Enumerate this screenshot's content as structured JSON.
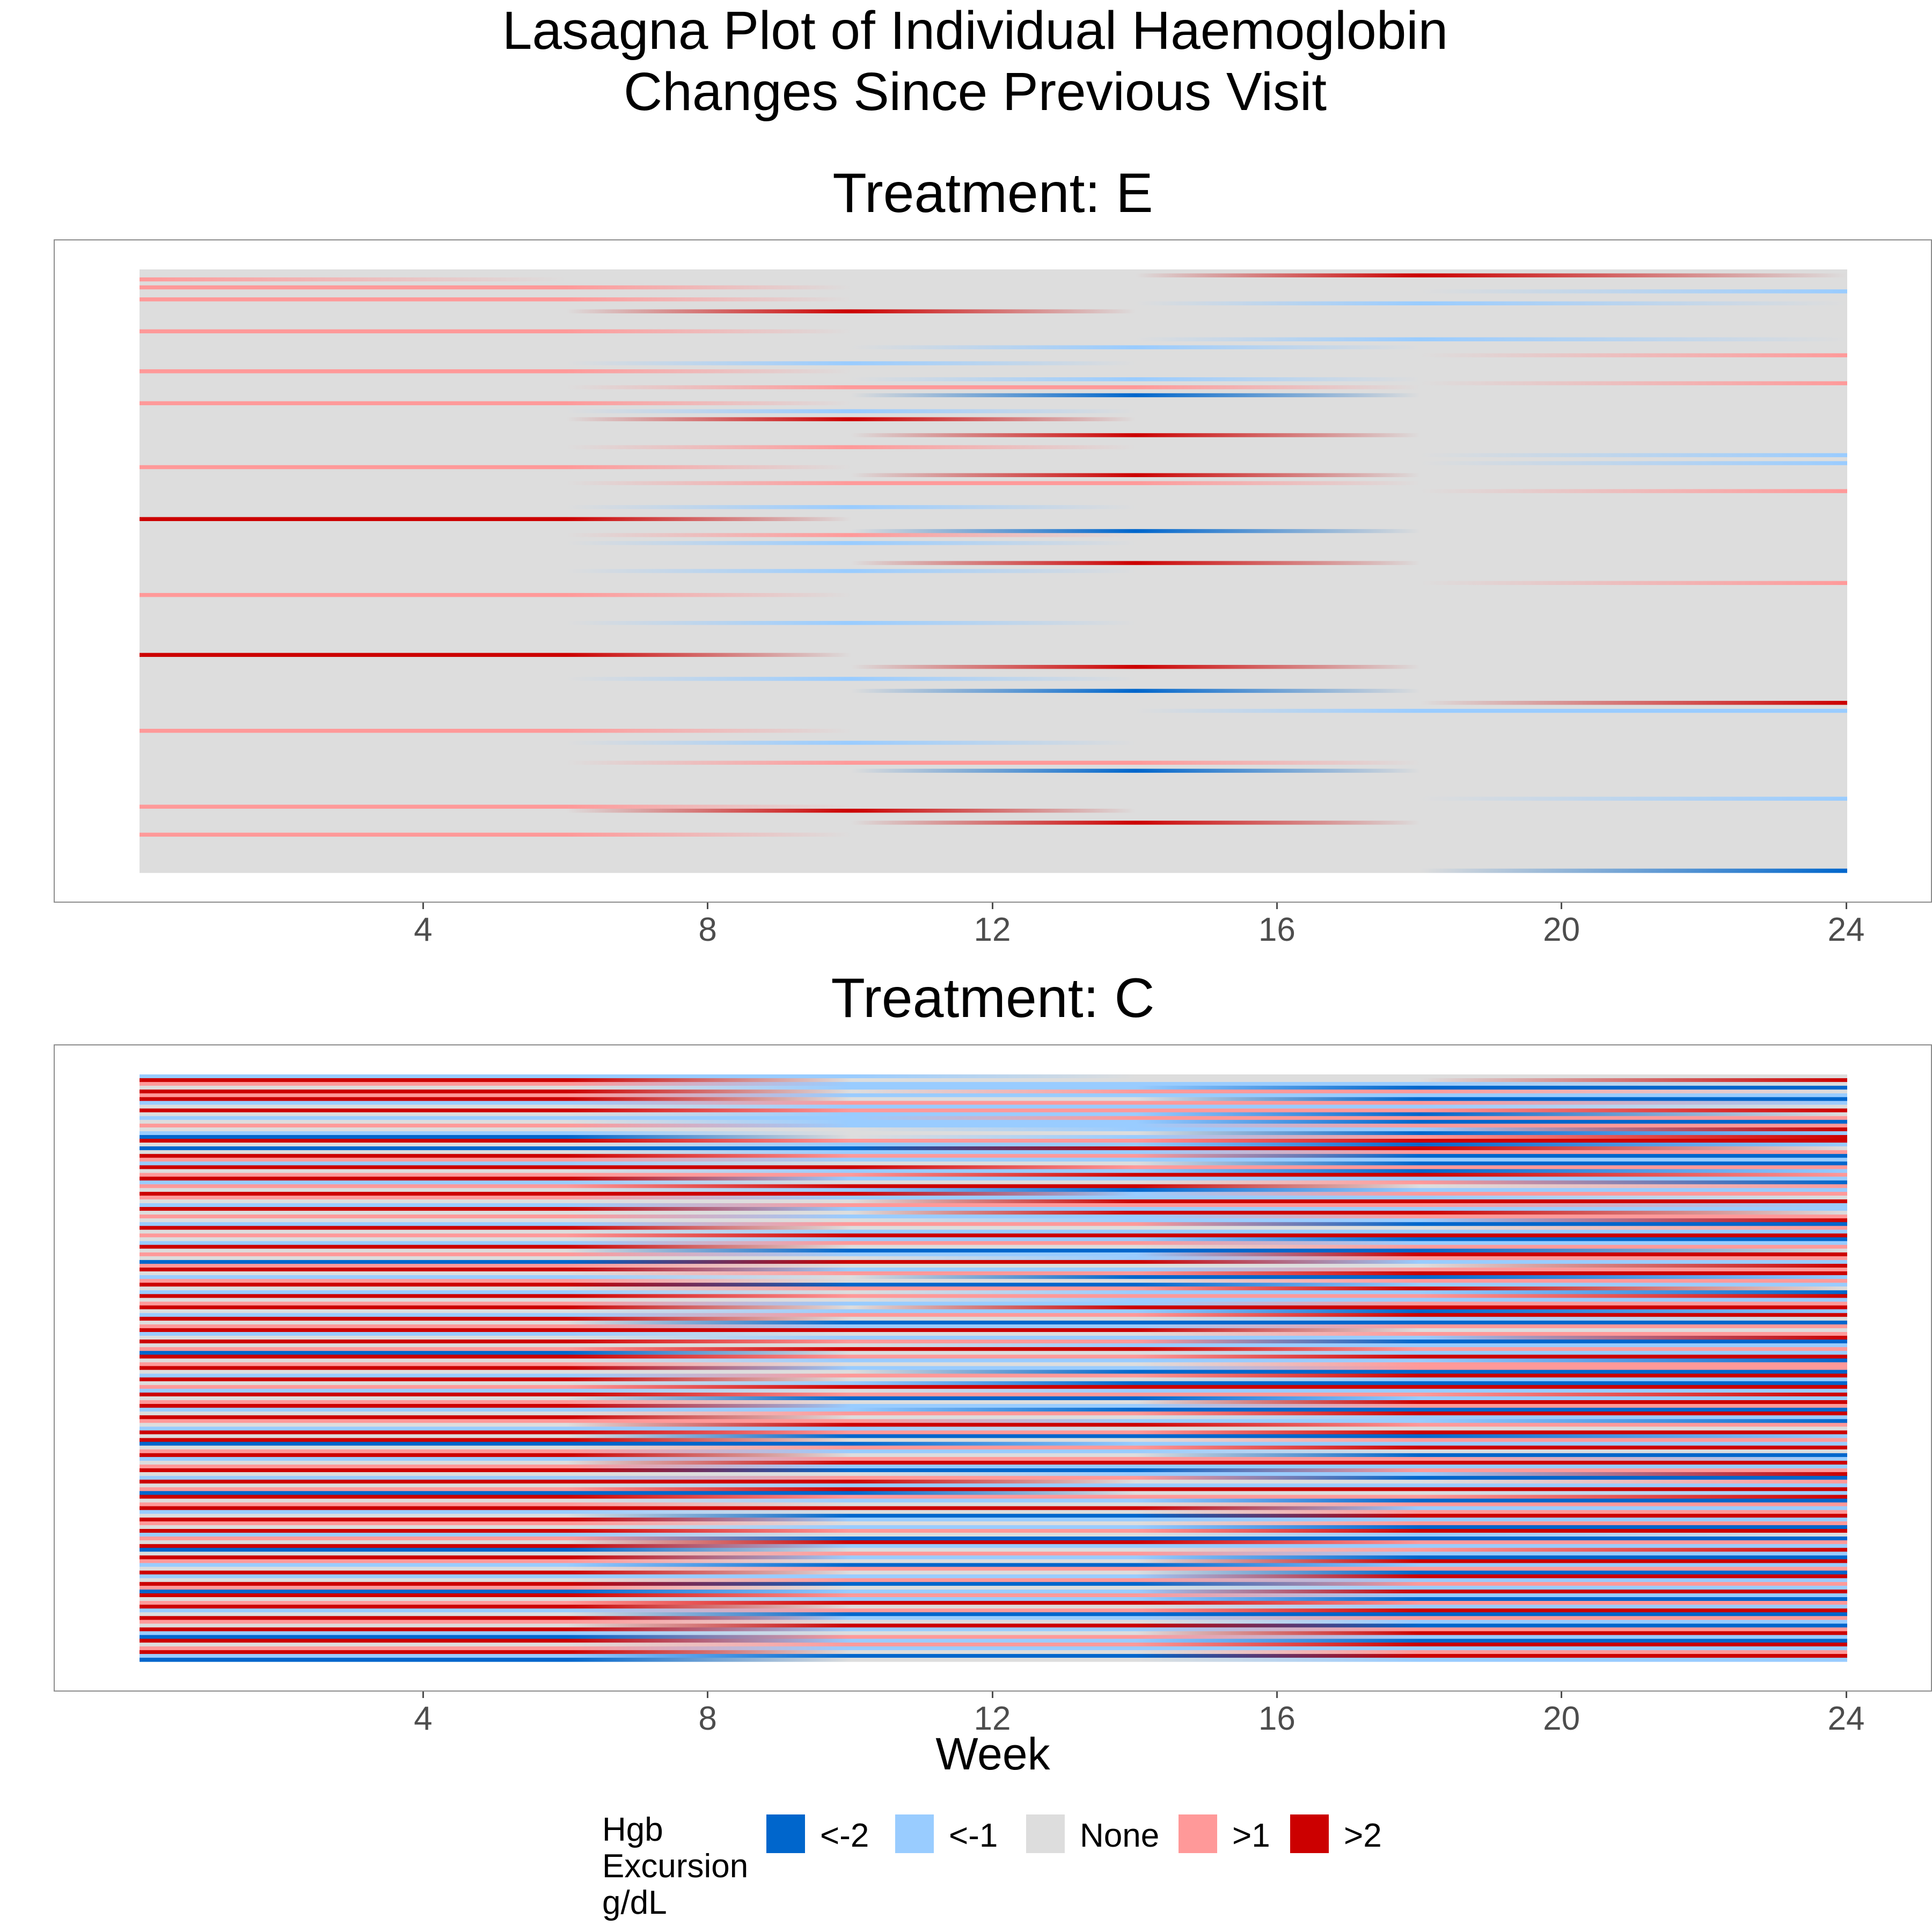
{
  "title_lines": [
    "Lasagna Plot of Individual Haemoglobin",
    "Changes Since Previous Visit"
  ],
  "chart_data": {
    "type": "heatmap",
    "title": "Lasagna Plot of Individual Haemoglobin Changes Since Previous Visit",
    "xlabel": "Week",
    "ylabel": "",
    "xlim": [
      0,
      24
    ],
    "x_ticks": [
      "4",
      "8",
      "12",
      "16",
      "20",
      "24"
    ],
    "grid": false,
    "legend_position": "bottom",
    "legend": {
      "title_lines": [
        "Hgb",
        "Excursion",
        "g/dL"
      ],
      "categories": [
        {
          "label": "<-2",
          "color": "#0066CC"
        },
        {
          "label": "<-1",
          "color": "#99CCFF"
        },
        {
          "label": "None",
          "color": "#DDDDDD"
        },
        {
          "label": ">1",
          "color": "#FF9999"
        },
        {
          "label": ">2",
          "color": "#CC0000"
        }
      ]
    },
    "weeks": [
      0,
      6,
      10,
      14,
      18,
      24
    ],
    "panels": [
      {
        "title": "Treatment: E",
        "rows": [
          "NNNNNN",
          "NNNNXN",
          "PNNNNN",
          "NNNNNN",
          "PPNNNN",
          "NNNNNL",
          "NNNNNN",
          "PPNNNN",
          "NNNNLN",
          "NNNNNN",
          "NNXNNN",
          "NNNNNN",
          "NNNNNN",
          "NNNNNN",
          "NNNNNN",
          "PPNNNN",
          "NNNNNN",
          "NNNNLN",
          "NNNNNN",
          "NNNLNN",
          "NNNNNN",
          "NNNNNP",
          "NNNNNN",
          "NNLNNN",
          "NNNNNN",
          "PPNNNN",
          "NNNNNN",
          "NNNLNN",
          "NNNNNP",
          "NNPPNN",
          "NNNNNN",
          "NNNDNN",
          "NNNNNN",
          "PPNNNN",
          "NNNNNN",
          "NNLNNN",
          "NNNNNN",
          "NNXNNN",
          "NNNNNN",
          "NNNNNN",
          "NNNNNN",
          "NNNXNN",
          "NNNNNN",
          "NNNNNN",
          "NNPNNN",
          "NNNNNN",
          "NNNNNL",
          "NNNNNN",
          "NNNNNL",
          "PPNNNN",
          "NNNNNN",
          "NNNXNN",
          "NNNNNN",
          "NNPPNN",
          "NNNNNN",
          "NNNNNP",
          "NNNNNN",
          "NNNNNN",
          "NNNNNN",
          "NNLNNN",
          "NNNNNN",
          "NNNNNN",
          "XXNNNN",
          "NNNNNN",
          "NNNNNN",
          "NNNDNN",
          "NNPNNN",
          "NNNNNN",
          "NNLNNN",
          "NNNNNN",
          "NNNNNN",
          "NNNNNN",
          "NNNNNN",
          "NNNXNN",
          "NNNNNN",
          "NNLNNN",
          "NNNNNN",
          "NNNNNN",
          "NNNNNP",
          "NNNNNN",
          "NNNNNN",
          "PPNNNN",
          "NNNNNN",
          "NNNNNN",
          "NNNNNN",
          "NNNNNN",
          "NNNNNN",
          "NNNNNN",
          "NNLNNN",
          "NNNNNN",
          "NNNNNN",
          "NNNNNN",
          "NNNNNN",
          "NNNNNN",
          "NNNNNN",
          "NNNNNN",
          "XXNNNN",
          "NNNNNN",
          "NNNNNN",
          "NNNXNN",
          "NNNNNN",
          "NNNNNN",
          "NNLNNN",
          "NNNNNN",
          "NNNNNN",
          "NNNDNN",
          "NNNNNN",
          "NNNNNN",
          "NNNNNX",
          "NNNNNN",
          "NNNNLL",
          "NNNNNN",
          "NNNNNN",
          "NNNNNN",
          "NNNNNN",
          "PPNNNN",
          "NNNNNN",
          "NNNNNN",
          "NNLNNN",
          "NNNNNN",
          "NNNNNN",
          "NNNNNN",
          "NNNNNN",
          "NNPPNN",
          "NNNNNN",
          "NNNDNN",
          "NNNNNN",
          "NNNNNN",
          "NNNNNN",
          "NNNNNN",
          "NNNNNN",
          "NNNNNN",
          "NNNNNL",
          "NNNNNN",
          "PPNNNN",
          "NNXNNN",
          "NNNNNN",
          "NNNNNN",
          "NNNXNN",
          "NNNNNN",
          "NNNNNN",
          "PPNNNN",
          "NNNNNN",
          "NNNNNN",
          "NNNNNN",
          "NNNNNN",
          "NNNNNN",
          "NNNNNN",
          "NNNNNN",
          "NNNNNN",
          "NNNNND"
        ]
      },
      {
        "title": "Treatment: C",
        "rows": [
          "LLLNNN",
          "XXNNNX",
          "PPLLLN",
          "NNLLDD",
          "XXNPPN",
          "PPLLLL",
          "XXNNDD",
          "LLPPPL",
          "NNLLLN",
          "XXPPPX",
          "NNLLDN",
          "LLLPPP",
          "NNLLDD",
          "PPLLPP",
          "NNNLLX",
          "LLNNDL",
          "DDNLPX",
          "XXPPXX",
          "NNLLDL",
          "DDDXXN",
          "NNLLPP",
          "XXPPDD",
          "PPLLLL",
          "LLNNDD",
          "XXXPPP",
          "NNLLDL",
          "PPPXXP",
          "XXLLLL",
          "LLNNPD",
          "PPXXNP",
          "NNLDLL",
          "XXXLPP",
          "PPLLLN",
          "NNNXXX",
          "LLPPPL",
          "XXLLLL",
          "NNNXXN",
          "PPLLPP",
          "NNNLLX",
          "LLPPDD",
          "XXNNNP",
          "NNLLLL",
          "PPXXXX",
          "NNLLDD",
          "LLPPLL",
          "XXNNPP",
          "NNDDDN",
          "PPLLXX",
          "NNNLPP",
          "DDXXLL",
          "PPNNNX",
          "XXLLPP",
          "NNPPXX",
          "LLNDDL",
          "PPNNPP",
          "XXDDLL",
          "NNPPXN",
          "LLNLLD",
          "XXPPPX",
          "NNNLLL",
          "PPLLPP",
          "XXNXXX",
          "NNLLDL",
          "LLPPXX",
          "XXNNLN",
          "NNDDDD",
          "PPLLPP",
          "XXXXNN",
          "LLNNPP",
          "NNLLLX",
          "XXPPDD",
          "NNNLLL",
          "PPXXPP",
          "DDNNLL",
          "XXPPXX",
          "NNLLLD",
          "PPNNPP",
          "XXLLPP",
          "NNNDDD",
          "LLPPXX",
          "XXNNLL",
          "NNLDDD",
          "PPXXXX",
          "LLNLLL",
          "XXPPPX",
          "NNDDLL",
          "PPNNXX",
          "XXLLPP",
          "LLLDDD",
          "NNPPXX",
          "XXNNLL",
          "PPPLLD",
          "NNXXPP",
          "LLLNNN",
          "XXPPXX",
          "NNDDDL",
          "XXNNPP",
          "DDDLLL",
          "NNPPXX",
          "PPLLNN",
          "XXNNDD",
          "LLPPPL",
          "NNXXXX",
          "PPLLLL",
          "XXDDPP",
          "NNNLLX",
          "LLPPDD",
          "XXXNNP",
          "NNLLLL",
          "PPXXXX",
          "DDDNNL",
          "XXPPPX",
          "NNLLDD",
          "PPNNPP",
          "XXXXLL",
          "LLNNPP",
          "NNDDXX",
          "XXLLLL",
          "PPNNPP",
          "NNLLDD",
          "XXPPXX",
          "LLNNLN",
          "PPDDDD",
          "NNXXPP",
          "XXLLLL",
          "DDNNPX",
          "NNPPLL",
          "XXLLDD",
          "PPNNXX",
          "LLDDLL",
          "NNPPPP",
          "XXNNDD",
          "LLLLXX",
          "NNPPLL",
          "XXDDPP",
          "PPNNLL",
          "DDLLXX",
          "XXPPLL",
          "NNLLDD",
          "PPXXPP",
          "XXNNLL",
          "LLPPXX",
          "NNDDDD",
          "XXLLPP",
          "PPNNLL",
          "NNXXDD",
          "XXLLPP",
          "LLNNXX",
          "DDPPLL",
          "XXLLDD",
          "NNPPXX",
          "PPLLLL",
          "XXNNPP",
          "LLDDXX",
          "DDNNLL"
        ]
      }
    ]
  }
}
